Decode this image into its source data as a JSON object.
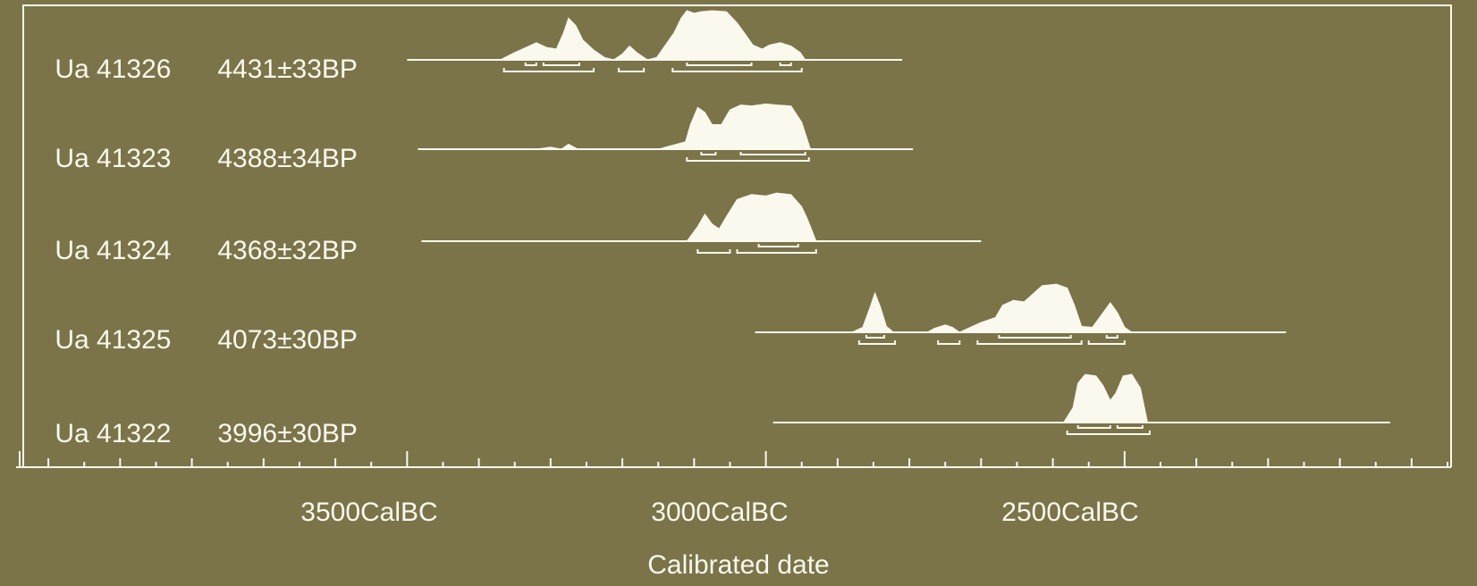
{
  "chart_data": {
    "type": "area",
    "title": "",
    "xlabel": "Calibrated date",
    "ylabel": "",
    "x_unit": "year BC (cal)",
    "xlim": [
      4035,
      2045
    ],
    "major_ticks": [
      {
        "value": 3500,
        "label": "3500CalBC"
      },
      {
        "value": 3000,
        "label": "3000CalBC"
      },
      {
        "value": 2500,
        "label": "2500CalBC"
      }
    ],
    "minor_tick_step": 100,
    "grid": false,
    "colors": {
      "background": "#7b7449",
      "foreground": "#fbf8ee"
    },
    "series": [
      {
        "lab": "Ua 41326",
        "age": "4431±33BP",
        "curve_range": [
          3500,
          2810
        ],
        "density": [
          [
            3370,
            0
          ],
          [
            3350,
            0.15
          ],
          [
            3330,
            0.28
          ],
          [
            3320,
            0.35
          ],
          [
            3305,
            0.25
          ],
          [
            3292,
            0.22
          ],
          [
            3282,
            0.55
          ],
          [
            3275,
            0.85
          ],
          [
            3265,
            0.7
          ],
          [
            3255,
            0.4
          ],
          [
            3240,
            0.2
          ],
          [
            3225,
            0.05
          ],
          [
            3212,
            0
          ],
          [
            3200,
            0.12
          ],
          [
            3190,
            0.28
          ],
          [
            3180,
            0.15
          ],
          [
            3165,
            0
          ],
          [
            3152,
            0.05
          ],
          [
            3140,
            0.3
          ],
          [
            3128,
            0.55
          ],
          [
            3118,
            0.85
          ],
          [
            3110,
            1.0
          ],
          [
            3100,
            0.95
          ],
          [
            3090,
            0.98
          ],
          [
            3075,
            1.0
          ],
          [
            3055,
            0.98
          ],
          [
            3040,
            0.75
          ],
          [
            3030,
            0.55
          ],
          [
            3018,
            0.3
          ],
          [
            3005,
            0.22
          ],
          [
            2995,
            0.3
          ],
          [
            2980,
            0.35
          ],
          [
            2965,
            0.28
          ],
          [
            2952,
            0.15
          ],
          [
            2945,
            0
          ]
        ],
        "range_95": [
          [
            3365,
            3240
          ],
          [
            3205,
            3170
          ],
          [
            3130,
            2950
          ]
        ],
        "range_68": [
          [
            3335,
            3320
          ],
          [
            3310,
            3260
          ],
          [
            3110,
            3020
          ],
          [
            2980,
            2965
          ]
        ]
      },
      {
        "lab": "Ua 41323",
        "age": "4388±34BP",
        "curve_range": [
          3485,
          2795
        ],
        "density": [
          [
            3320,
            0
          ],
          [
            3300,
            0.04
          ],
          [
            3285,
            0
          ],
          [
            3275,
            0.1
          ],
          [
            3262,
            0
          ],
          [
            3150,
            0
          ],
          [
            3112,
            0.15
          ],
          [
            3105,
            0.5
          ],
          [
            3095,
            0.85
          ],
          [
            3085,
            0.75
          ],
          [
            3075,
            0.5
          ],
          [
            3062,
            0.5
          ],
          [
            3050,
            0.8
          ],
          [
            3035,
            0.9
          ],
          [
            3020,
            0.88
          ],
          [
            3000,
            0.92
          ],
          [
            2985,
            0.9
          ],
          [
            2965,
            0.88
          ],
          [
            2950,
            0.55
          ],
          [
            2938,
            0
          ]
        ],
        "range_95": [
          [
            3110,
            2940
          ]
        ],
        "range_68": [
          [
            3090,
            3070
          ],
          [
            3035,
            2945
          ]
        ]
      },
      {
        "lab": "Ua 41324",
        "age": "4368±32BP",
        "curve_range": [
          3480,
          2700
        ],
        "density": [
          [
            3110,
            0
          ],
          [
            3095,
            0.3
          ],
          [
            3085,
            0.55
          ],
          [
            3075,
            0.35
          ],
          [
            3065,
            0.25
          ],
          [
            3055,
            0.5
          ],
          [
            3040,
            0.85
          ],
          [
            3020,
            0.95
          ],
          [
            3000,
            0.92
          ],
          [
            2985,
            0.98
          ],
          [
            2965,
            0.95
          ],
          [
            2950,
            0.7
          ],
          [
            2942,
            0.45
          ],
          [
            2930,
            0
          ]
        ],
        "range_95": [
          [
            3095,
            3050
          ],
          [
            3040,
            2930
          ]
        ],
        "range_68": [
          [
            3010,
            2955
          ]
        ]
      },
      {
        "lab": "Ua 41325",
        "age": "4073±30BP",
        "curve_range": [
          3015,
          2275
        ],
        "density": [
          [
            2880,
            0
          ],
          [
            2865,
            0.1
          ],
          [
            2855,
            0.5
          ],
          [
            2848,
            0.8
          ],
          [
            2840,
            0.5
          ],
          [
            2832,
            0.12
          ],
          [
            2822,
            0
          ],
          [
            2775,
            0
          ],
          [
            2765,
            0.08
          ],
          [
            2750,
            0.15
          ],
          [
            2740,
            0.1
          ],
          [
            2730,
            0
          ],
          [
            2715,
            0.1
          ],
          [
            2700,
            0.2
          ],
          [
            2680,
            0.3
          ],
          [
            2670,
            0.55
          ],
          [
            2655,
            0.65
          ],
          [
            2640,
            0.62
          ],
          [
            2630,
            0.75
          ],
          [
            2615,
            0.95
          ],
          [
            2595,
            0.98
          ],
          [
            2580,
            0.9
          ],
          [
            2570,
            0.55
          ],
          [
            2560,
            0.12
          ],
          [
            2545,
            0.1
          ],
          [
            2530,
            0.4
          ],
          [
            2520,
            0.6
          ],
          [
            2510,
            0.4
          ],
          [
            2500,
            0.1
          ],
          [
            2490,
            0
          ]
        ],
        "range_95": [
          [
            2870,
            2820
          ],
          [
            2760,
            2730
          ],
          [
            2705,
            2560
          ],
          [
            2550,
            2500
          ]
        ],
        "range_68": [
          [
            2860,
            2835
          ],
          [
            2675,
            2575
          ],
          [
            2525,
            2510
          ]
        ]
      },
      {
        "lab": "Ua 41322",
        "age": "3996±30BP",
        "curve_range": [
          2990,
          2130
        ],
        "density": [
          [
            2585,
            0
          ],
          [
            2572,
            0.3
          ],
          [
            2565,
            0.8
          ],
          [
            2555,
            0.98
          ],
          [
            2540,
            0.95
          ],
          [
            2530,
            0.75
          ],
          [
            2520,
            0.45
          ],
          [
            2512,
            0.6
          ],
          [
            2502,
            0.95
          ],
          [
            2490,
            0.98
          ],
          [
            2478,
            0.7
          ],
          [
            2468,
            0
          ]
        ],
        "range_95": [
          [
            2580,
            2465
          ]
        ],
        "range_68": [
          [
            2565,
            2520
          ],
          [
            2510,
            2475
          ]
        ]
      }
    ]
  }
}
